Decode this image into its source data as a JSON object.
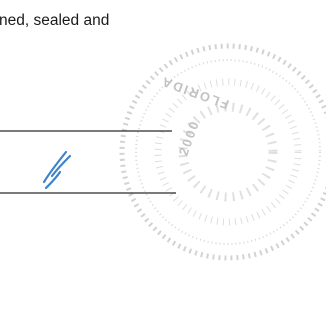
{
  "text_line": "ned, sealed and",
  "seal": {
    "state": "FLORIDA",
    "year": "2000"
  }
}
